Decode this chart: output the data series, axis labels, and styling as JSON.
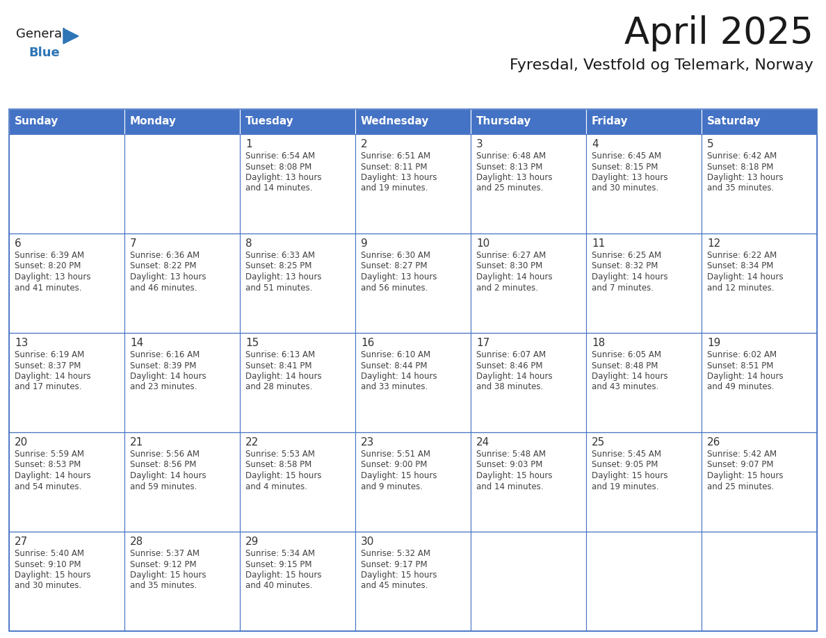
{
  "title": "April 2025",
  "subtitle": "Fyresdal, Vestfold og Telemark, Norway",
  "header_bg_color": "#4472C4",
  "header_text_color": "#FFFFFF",
  "border_color": "#4472C4",
  "day_names": [
    "Sunday",
    "Monday",
    "Tuesday",
    "Wednesday",
    "Thursday",
    "Friday",
    "Saturday"
  ],
  "title_color": "#1a1a1a",
  "subtitle_color": "#1a1a1a",
  "text_color": "#404040",
  "day_number_color": "#333333",
  "logo_general_color": "#1a1a1a",
  "logo_blue_color": "#2E75B6",
  "logo_triangle_color": "#2E75B6",
  "calendar_data": [
    [
      {
        "day": "",
        "sunrise": "",
        "sunset": "",
        "daylight": ""
      },
      {
        "day": "",
        "sunrise": "",
        "sunset": "",
        "daylight": ""
      },
      {
        "day": "1",
        "sunrise": "6:54 AM",
        "sunset": "8:08 PM",
        "daylight": "13 hours and 14 minutes."
      },
      {
        "day": "2",
        "sunrise": "6:51 AM",
        "sunset": "8:11 PM",
        "daylight": "13 hours and 19 minutes."
      },
      {
        "day": "3",
        "sunrise": "6:48 AM",
        "sunset": "8:13 PM",
        "daylight": "13 hours and 25 minutes."
      },
      {
        "day": "4",
        "sunrise": "6:45 AM",
        "sunset": "8:15 PM",
        "daylight": "13 hours and 30 minutes."
      },
      {
        "day": "5",
        "sunrise": "6:42 AM",
        "sunset": "8:18 PM",
        "daylight": "13 hours and 35 minutes."
      }
    ],
    [
      {
        "day": "6",
        "sunrise": "6:39 AM",
        "sunset": "8:20 PM",
        "daylight": "13 hours and 41 minutes."
      },
      {
        "day": "7",
        "sunrise": "6:36 AM",
        "sunset": "8:22 PM",
        "daylight": "13 hours and 46 minutes."
      },
      {
        "day": "8",
        "sunrise": "6:33 AM",
        "sunset": "8:25 PM",
        "daylight": "13 hours and 51 minutes."
      },
      {
        "day": "9",
        "sunrise": "6:30 AM",
        "sunset": "8:27 PM",
        "daylight": "13 hours and 56 minutes."
      },
      {
        "day": "10",
        "sunrise": "6:27 AM",
        "sunset": "8:30 PM",
        "daylight": "14 hours and 2 minutes."
      },
      {
        "day": "11",
        "sunrise": "6:25 AM",
        "sunset": "8:32 PM",
        "daylight": "14 hours and 7 minutes."
      },
      {
        "day": "12",
        "sunrise": "6:22 AM",
        "sunset": "8:34 PM",
        "daylight": "14 hours and 12 minutes."
      }
    ],
    [
      {
        "day": "13",
        "sunrise": "6:19 AM",
        "sunset": "8:37 PM",
        "daylight": "14 hours and 17 minutes."
      },
      {
        "day": "14",
        "sunrise": "6:16 AM",
        "sunset": "8:39 PM",
        "daylight": "14 hours and 23 minutes."
      },
      {
        "day": "15",
        "sunrise": "6:13 AM",
        "sunset": "8:41 PM",
        "daylight": "14 hours and 28 minutes."
      },
      {
        "day": "16",
        "sunrise": "6:10 AM",
        "sunset": "8:44 PM",
        "daylight": "14 hours and 33 minutes."
      },
      {
        "day": "17",
        "sunrise": "6:07 AM",
        "sunset": "8:46 PM",
        "daylight": "14 hours and 38 minutes."
      },
      {
        "day": "18",
        "sunrise": "6:05 AM",
        "sunset": "8:48 PM",
        "daylight": "14 hours and 43 minutes."
      },
      {
        "day": "19",
        "sunrise": "6:02 AM",
        "sunset": "8:51 PM",
        "daylight": "14 hours and 49 minutes."
      }
    ],
    [
      {
        "day": "20",
        "sunrise": "5:59 AM",
        "sunset": "8:53 PM",
        "daylight": "14 hours and 54 minutes."
      },
      {
        "day": "21",
        "sunrise": "5:56 AM",
        "sunset": "8:56 PM",
        "daylight": "14 hours and 59 minutes."
      },
      {
        "day": "22",
        "sunrise": "5:53 AM",
        "sunset": "8:58 PM",
        "daylight": "15 hours and 4 minutes."
      },
      {
        "day": "23",
        "sunrise": "5:51 AM",
        "sunset": "9:00 PM",
        "daylight": "15 hours and 9 minutes."
      },
      {
        "day": "24",
        "sunrise": "5:48 AM",
        "sunset": "9:03 PM",
        "daylight": "15 hours and 14 minutes."
      },
      {
        "day": "25",
        "sunrise": "5:45 AM",
        "sunset": "9:05 PM",
        "daylight": "15 hours and 19 minutes."
      },
      {
        "day": "26",
        "sunrise": "5:42 AM",
        "sunset": "9:07 PM",
        "daylight": "15 hours and 25 minutes."
      }
    ],
    [
      {
        "day": "27",
        "sunrise": "5:40 AM",
        "sunset": "9:10 PM",
        "daylight": "15 hours and 30 minutes."
      },
      {
        "day": "28",
        "sunrise": "5:37 AM",
        "sunset": "9:12 PM",
        "daylight": "15 hours and 35 minutes."
      },
      {
        "day": "29",
        "sunrise": "5:34 AM",
        "sunset": "9:15 PM",
        "daylight": "15 hours and 40 minutes."
      },
      {
        "day": "30",
        "sunrise": "5:32 AM",
        "sunset": "9:17 PM",
        "daylight": "15 hours and 45 minutes."
      },
      {
        "day": "",
        "sunrise": "",
        "sunset": "",
        "daylight": ""
      },
      {
        "day": "",
        "sunrise": "",
        "sunset": "",
        "daylight": ""
      },
      {
        "day": "",
        "sunrise": "",
        "sunset": "",
        "daylight": ""
      }
    ]
  ]
}
